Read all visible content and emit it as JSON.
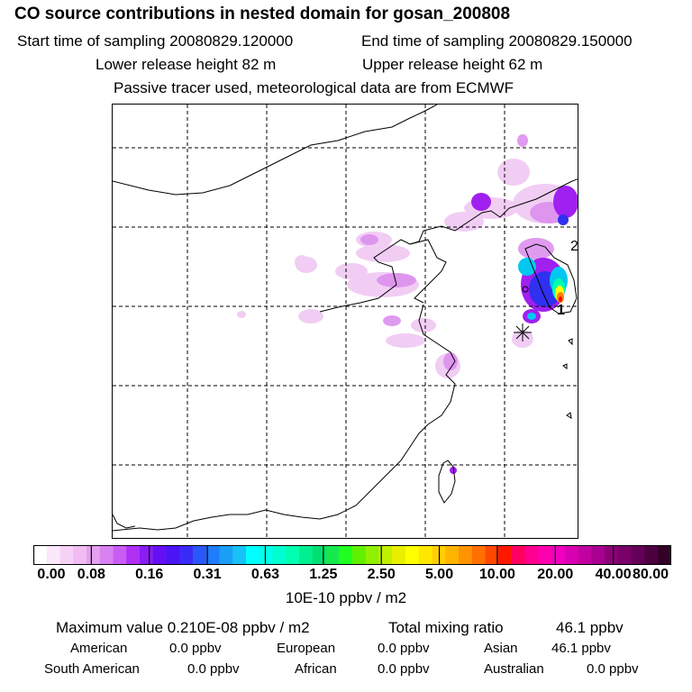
{
  "header": {
    "title": "CO  source contributions in nested domain for gosan_200808",
    "start_label": "Start time of sampling 20080829.120000",
    "end_label": "End time of sampling 20080829.150000",
    "lower_label": "Lower release height   82 m",
    "upper_label": "Upper release height   62 m",
    "note": "Passive tracer used, meteorological data are from ECMWF"
  },
  "map": {
    "receptor_labels": [
      "1",
      "2"
    ]
  },
  "colorbar": {
    "ticks": [
      "0.00",
      "0.08",
      "0.16",
      "0.31",
      "0.63",
      "1.25",
      "2.50",
      "5.00",
      "10.00",
      "20.00",
      "40.00",
      "80.00"
    ],
    "unit": "10E-10 ppbv / m2",
    "colors": [
      "#ffffff",
      "#fbe8fb",
      "#f6d2f6",
      "#f0bcf2",
      "#e5a1f0",
      "#d882f2",
      "#c95cf4",
      "#b030f4",
      "#8a1cf4",
      "#6510f4",
      "#4a14f4",
      "#3a2cf6",
      "#2a58f8",
      "#1f7cfa",
      "#1a9ef8",
      "#18c2f6",
      "#00ffff",
      "#00ffe8",
      "#00ffd0",
      "#00ffb0",
      "#00f090",
      "#00e070",
      "#18e850",
      "#20ff20",
      "#60f000",
      "#90f000",
      "#c0f000",
      "#e8f000",
      "#ffff00",
      "#ffe800",
      "#ffd000",
      "#ffb400",
      "#ff9400",
      "#ff7000",
      "#ff4800",
      "#ff1800",
      "#ff0060",
      "#ff0090",
      "#ff00b0",
      "#f000c0",
      "#d800b0",
      "#c000a0",
      "#a80090",
      "#8c0078",
      "#780068",
      "#640058",
      "#4c0040",
      "#340028"
    ]
  },
  "stats": {
    "max_label": "Maximum value  0.210E-08 ppbv / m2",
    "total_label": "Total mixing ratio",
    "total_value": "46.1 ppbv",
    "regions": [
      {
        "name": "American",
        "value": "0.0 ppbv"
      },
      {
        "name": "European",
        "value": "0.0 ppbv"
      },
      {
        "name": "Asian",
        "value": "46.1 ppbv"
      },
      {
        "name": "South American",
        "value": "0.0 ppbv"
      },
      {
        "name": "African",
        "value": "0.0 ppbv"
      },
      {
        "name": "Australian",
        "value": "0.0 ppbv"
      }
    ]
  }
}
